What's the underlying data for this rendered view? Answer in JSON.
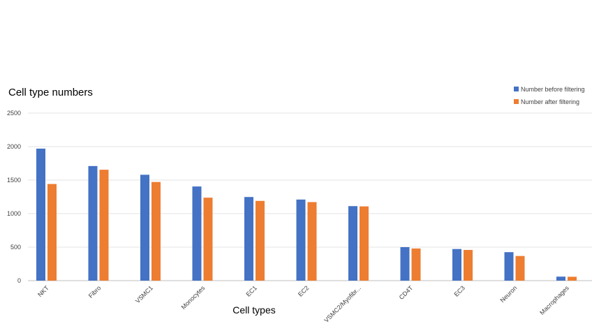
{
  "chart_data": {
    "type": "bar",
    "title": "Cell type numbers",
    "xlabel": "Cell types",
    "ylabel": "",
    "ylim": [
      0,
      2500
    ],
    "yticks": [
      0,
      500,
      1000,
      1500,
      2000,
      2500
    ],
    "grid": true,
    "legend_position": "top-right",
    "categories": [
      "NKT",
      "Fibro",
      "VSMC1",
      "Monocytes",
      "EC1",
      "EC2",
      "VSMC2/Myofibr...",
      "CD4T",
      "EC3",
      "Neuron",
      "Macrophages"
    ],
    "series": [
      {
        "name": "Number before filtering",
        "color": "#4472c4",
        "values": [
          1970,
          1710,
          1580,
          1405,
          1248,
          1210,
          1112,
          500,
          472,
          425,
          60
        ]
      },
      {
        "name": "Number after filtering",
        "color": "#ed7d31",
        "values": [
          1442,
          1655,
          1472,
          1238,
          1190,
          1172,
          1108,
          480,
          458,
          368,
          58
        ]
      }
    ]
  }
}
